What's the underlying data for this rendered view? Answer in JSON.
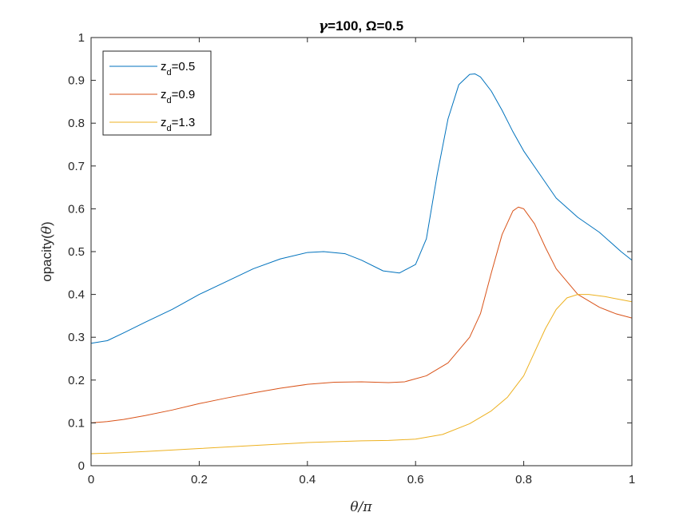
{
  "chart_data": {
    "type": "line",
    "title": {
      "gamma_symbol": "γ",
      "gamma_value": "=100, ",
      "omega_symbol": "Ω",
      "omega_value": "=0.5"
    },
    "xlabel": {
      "theta": "θ",
      "slash_pi": "/π"
    },
    "ylabel": {
      "prefix": "opacity(",
      "theta": "θ",
      "suffix": ")"
    },
    "xlim": [
      0,
      1
    ],
    "ylim": [
      0,
      1
    ],
    "xticks": [
      "0",
      "0.2",
      "0.4",
      "0.6",
      "0.8",
      "1"
    ],
    "yticks": [
      "0",
      "0.1",
      "0.2",
      "0.3",
      "0.4",
      "0.5",
      "0.6",
      "0.7",
      "0.8",
      "0.9",
      "1"
    ],
    "xtick_values": [
      0,
      0.2,
      0.4,
      0.6,
      0.8,
      1
    ],
    "ytick_values": [
      0,
      0.1,
      0.2,
      0.3,
      0.4,
      0.5,
      0.6,
      0.7,
      0.8,
      0.9,
      1
    ],
    "grid": false,
    "legend_placement": "top-left",
    "series": [
      {
        "name": "z",
        "subscript": "d",
        "value_text": "=0.5",
        "color": "#0072BD",
        "x": [
          0,
          0.03,
          0.06,
          0.1,
          0.15,
          0.2,
          0.25,
          0.3,
          0.35,
          0.4,
          0.43,
          0.47,
          0.5,
          0.54,
          0.57,
          0.6,
          0.62,
          0.64,
          0.66,
          0.68,
          0.7,
          0.71,
          0.72,
          0.74,
          0.76,
          0.78,
          0.8,
          0.83,
          0.86,
          0.9,
          0.94,
          0.98,
          1
        ],
        "y": [
          0.286,
          0.292,
          0.31,
          0.335,
          0.365,
          0.4,
          0.43,
          0.46,
          0.483,
          0.498,
          0.5,
          0.495,
          0.48,
          0.455,
          0.45,
          0.47,
          0.53,
          0.68,
          0.81,
          0.89,
          0.914,
          0.915,
          0.908,
          0.875,
          0.83,
          0.78,
          0.735,
          0.68,
          0.625,
          0.58,
          0.545,
          0.5,
          0.48
        ]
      },
      {
        "name": "z",
        "subscript": "d",
        "value_text": "=0.9",
        "color": "#D95319",
        "x": [
          0,
          0.03,
          0.06,
          0.1,
          0.15,
          0.2,
          0.25,
          0.3,
          0.35,
          0.4,
          0.45,
          0.5,
          0.55,
          0.58,
          0.62,
          0.66,
          0.7,
          0.72,
          0.74,
          0.76,
          0.78,
          0.79,
          0.8,
          0.82,
          0.84,
          0.86,
          0.9,
          0.94,
          0.97,
          1
        ],
        "y": [
          0.1,
          0.103,
          0.108,
          0.117,
          0.13,
          0.145,
          0.158,
          0.17,
          0.181,
          0.19,
          0.195,
          0.196,
          0.194,
          0.196,
          0.21,
          0.24,
          0.3,
          0.355,
          0.45,
          0.54,
          0.595,
          0.604,
          0.6,
          0.565,
          0.51,
          0.46,
          0.4,
          0.37,
          0.355,
          0.345
        ]
      },
      {
        "name": "z",
        "subscript": "d",
        "value_text": "=1.3",
        "color": "#EDB120",
        "x": [
          0,
          0.05,
          0.1,
          0.2,
          0.3,
          0.4,
          0.5,
          0.55,
          0.6,
          0.65,
          0.7,
          0.74,
          0.77,
          0.8,
          0.82,
          0.84,
          0.86,
          0.88,
          0.9,
          0.92,
          0.95,
          1
        ],
        "y": [
          0.028,
          0.03,
          0.033,
          0.04,
          0.047,
          0.054,
          0.058,
          0.059,
          0.062,
          0.073,
          0.098,
          0.128,
          0.16,
          0.21,
          0.265,
          0.32,
          0.365,
          0.392,
          0.4,
          0.4,
          0.395,
          0.383
        ]
      }
    ]
  }
}
